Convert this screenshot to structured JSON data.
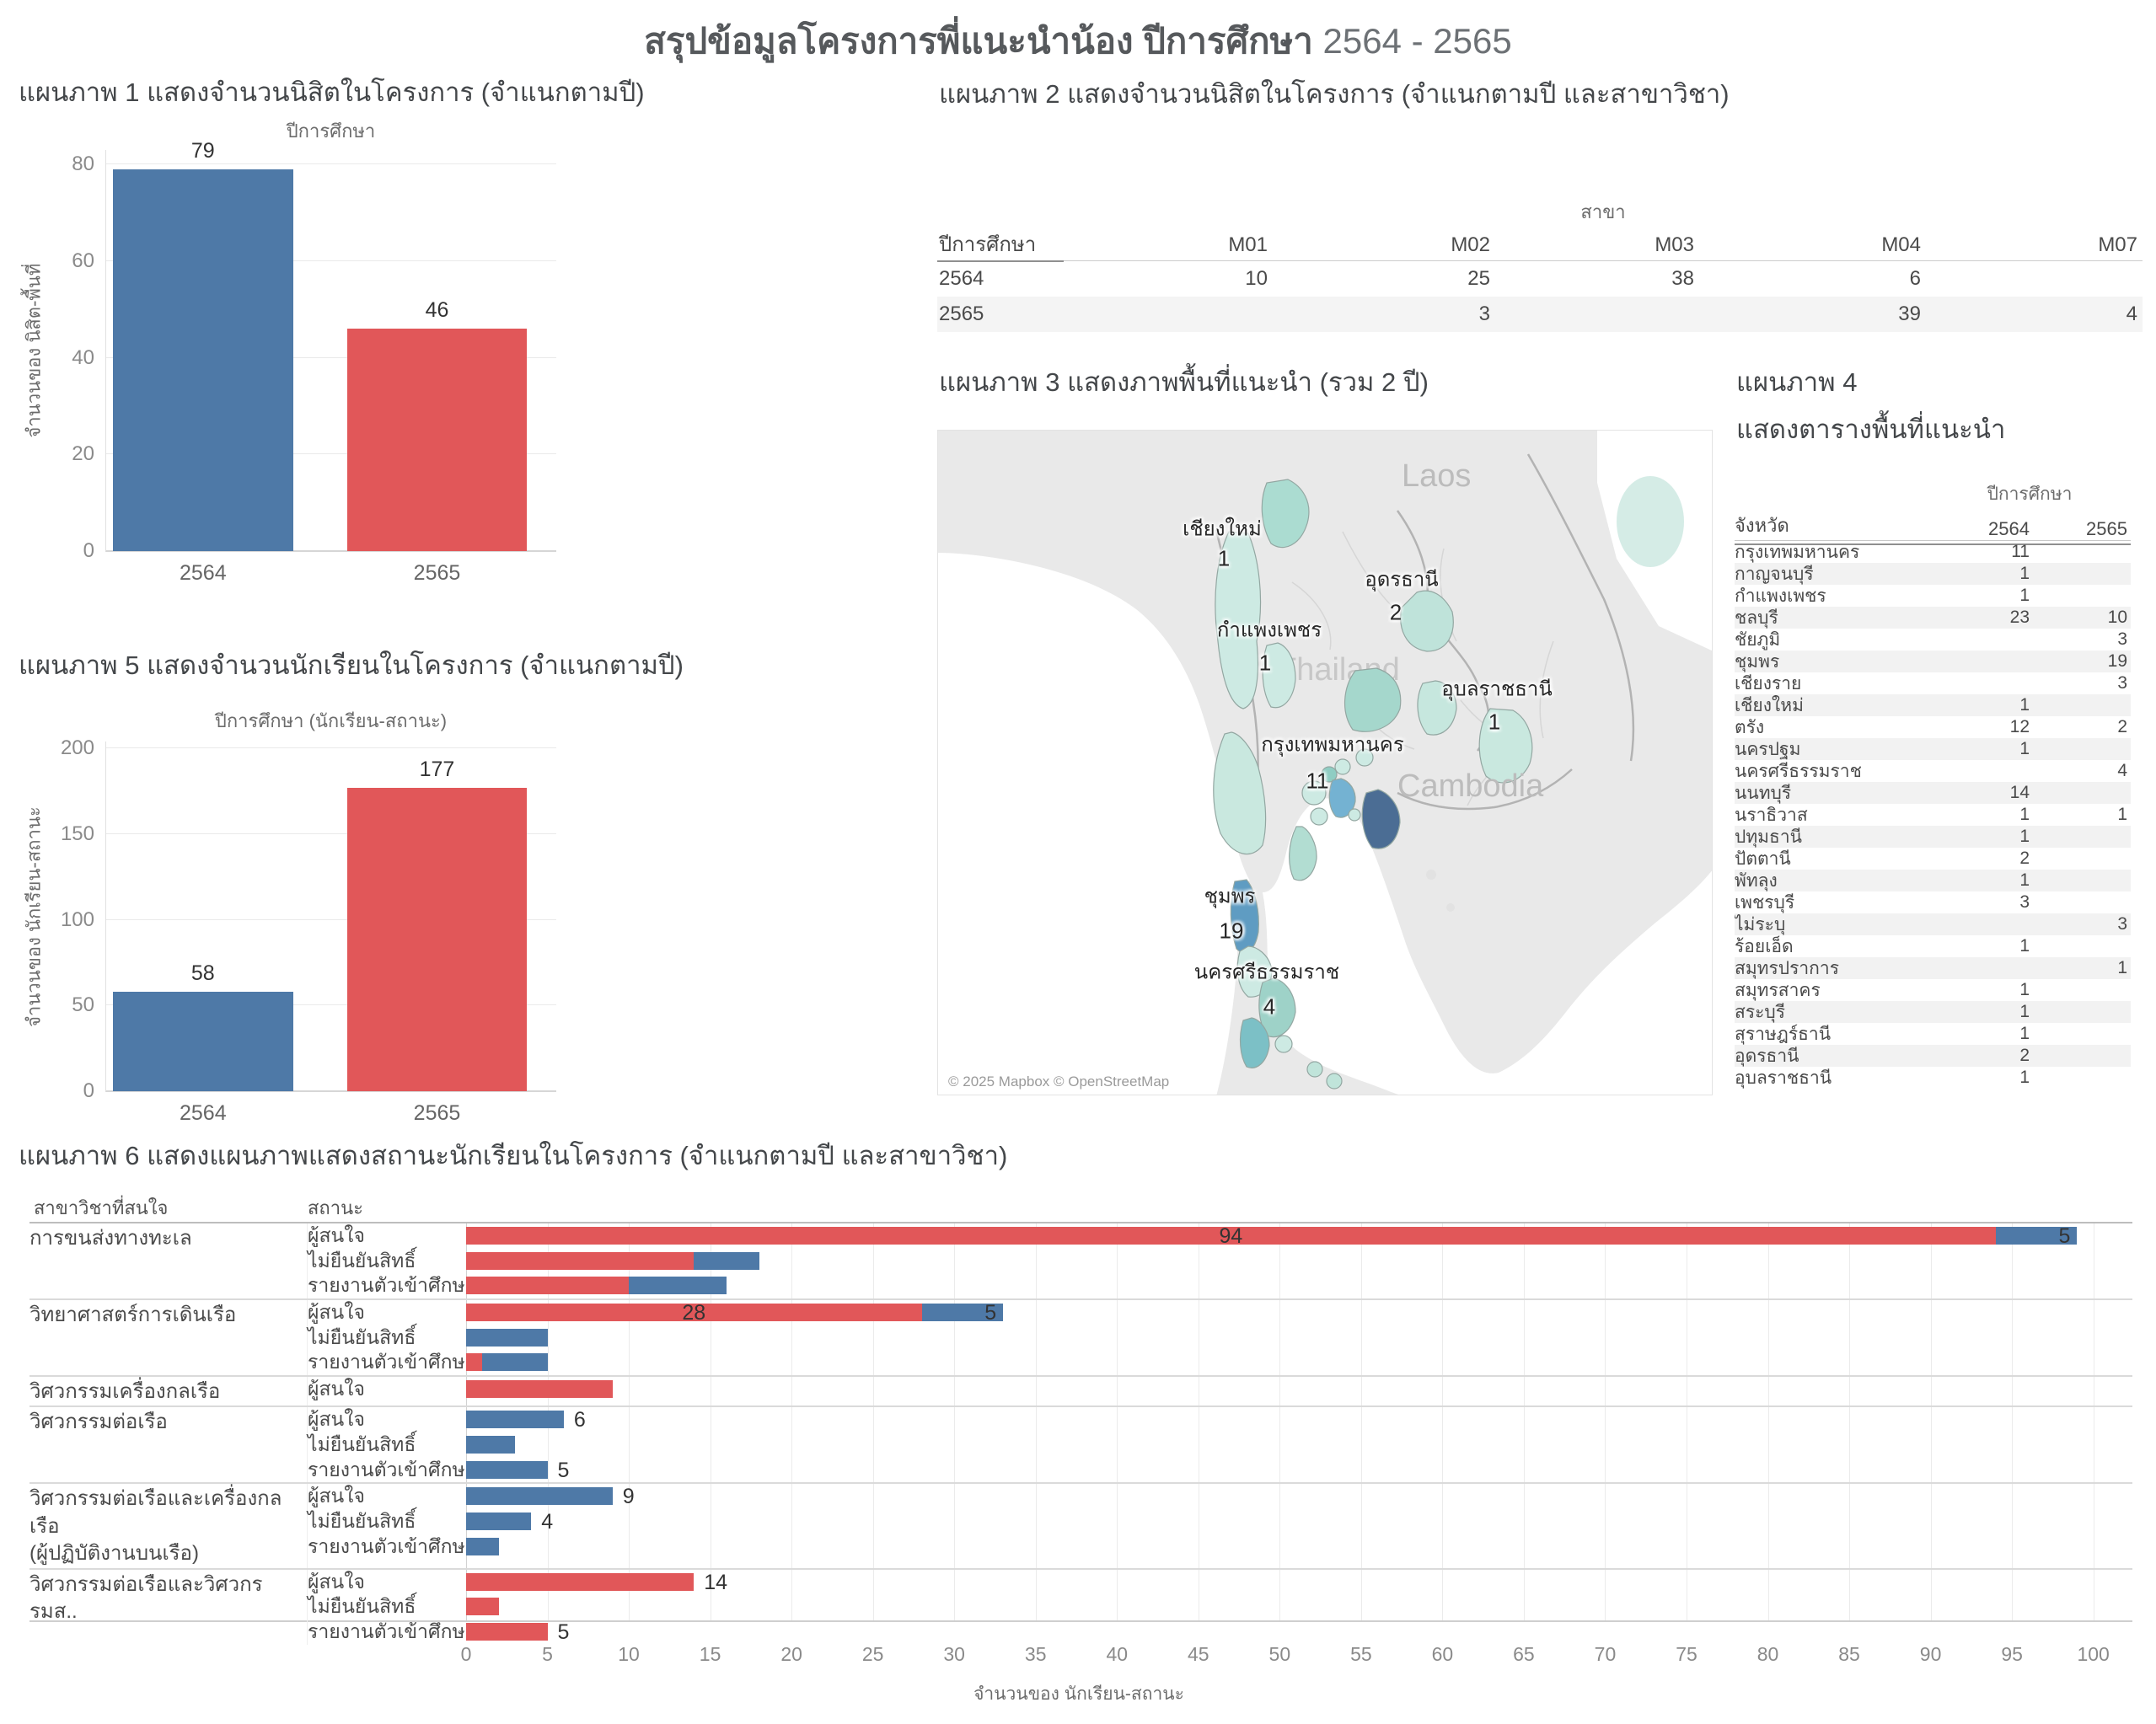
{
  "page_title": {
    "text": "สรุปข้อมูลโครงการพี่แนะนำน้อง ปีการศึกษา",
    "years": "2564 - 2565"
  },
  "colors": {
    "year_2564": "#4e79a7",
    "year_2565": "#e15759",
    "grid": "#eaeaea",
    "stripe": "#f4f4f4",
    "map_dark": "#4b6d94",
    "map_teal_high": "#5f9cc2",
    "map_teal_mid": "#8fcdc3",
    "map_teal_low": "#cdeae3"
  },
  "chart_data": [
    {
      "id": "chart1",
      "type": "bar",
      "title": "แผนภาพ 1 แสดงจำนวนนิสิตในโครงการ (จำแนกตามปี)",
      "axis_top_label": "ปีการศึกษา",
      "y_axis_title": "จำนวนของ นิสิต-พื้นที่",
      "y_ticks": [
        0,
        20,
        40,
        60,
        80
      ],
      "y_scale_max": 83,
      "bars": [
        {
          "category": "2564",
          "value": 79,
          "color": "#4e79a7"
        },
        {
          "category": "2565",
          "value": 46,
          "color": "#e15759"
        }
      ]
    },
    {
      "id": "chart2",
      "type": "table",
      "title": "แผนภาพ 2 แสดงจำนวนนิสิตในโครงการ (จำแนกตามปี และสาขาวิชา)",
      "col_group_label": "สาขา",
      "row_header": "ปีการศึกษา",
      "columns": [
        "M01",
        "M02",
        "M03",
        "M04",
        "M07"
      ],
      "rows": [
        {
          "year": "2564",
          "values": [
            "10",
            "25",
            "38",
            "6",
            ""
          ]
        },
        {
          "year": "2565",
          "values": [
            "",
            "3",
            "",
            "39",
            "4"
          ]
        }
      ]
    },
    {
      "id": "chart3",
      "type": "map",
      "title": "แผนภาพ 3 แสดงภาพพื้นที่แนะนำ (รวม 2 ปี)",
      "attribution": "© 2025 Mapbox © OpenStreetMap",
      "country_labels": [
        "Laos",
        "Thailand",
        "Cambodia"
      ],
      "province_labels": [
        {
          "name": "เชียงใหม่",
          "value": "1",
          "x": 337,
          "y": 116,
          "vx": 339,
          "vy": 152
        },
        {
          "name": "อุดรธานี",
          "value": "2",
          "x": 550,
          "y": 176,
          "vx": 543,
          "vy": 216
        },
        {
          "name": "กำแพงเพชร",
          "value": "1",
          "x": 393,
          "y": 236,
          "vx": 388,
          "vy": 276
        },
        {
          "name": "อุบลราชธานี",
          "value": "1",
          "x": 663,
          "y": 306,
          "vx": 660,
          "vy": 346
        },
        {
          "name": "กรุงเทพมหานคร",
          "value": "11",
          "x": 468,
          "y": 372,
          "vx": 450,
          "vy": 416
        },
        {
          "name": "ชุมพร",
          "value": "19",
          "x": 346,
          "y": 552,
          "vx": 348,
          "vy": 594
        },
        {
          "name": "นครศรีธรรมราช",
          "value": "4",
          "x": 390,
          "y": 642,
          "vx": 393,
          "vy": 684
        }
      ]
    },
    {
      "id": "chart4",
      "type": "table",
      "title_line1": "แผนภาพ 4",
      "title_line2": "แสดงตารางพื้นที่แนะนำ",
      "col_group_label": "ปีการศึกษา",
      "row_header": "จังหวัด",
      "columns": [
        "2564",
        "2565"
      ],
      "rows": [
        [
          "กรุงเทพมหานคร",
          "11",
          ""
        ],
        [
          "กาญจนบุรี",
          "1",
          ""
        ],
        [
          "กำแพงเพชร",
          "1",
          ""
        ],
        [
          "ชลบุรี",
          "23",
          "10"
        ],
        [
          "ชัยภูมิ",
          "",
          "3"
        ],
        [
          "ชุมพร",
          "",
          "19"
        ],
        [
          "เชียงราย",
          "",
          "3"
        ],
        [
          "เชียงใหม่",
          "1",
          ""
        ],
        [
          "ตรัง",
          "12",
          "2"
        ],
        [
          "นครปฐม",
          "1",
          ""
        ],
        [
          "นครศรีธรรมราช",
          "",
          "4"
        ],
        [
          "นนทบุรี",
          "14",
          ""
        ],
        [
          "นราธิวาส",
          "1",
          "1"
        ],
        [
          "ปทุมธานี",
          "1",
          ""
        ],
        [
          "ปัตตานี",
          "2",
          ""
        ],
        [
          "พัทลุง",
          "1",
          ""
        ],
        [
          "เพชรบุรี",
          "3",
          ""
        ],
        [
          "ไม่ระบุ",
          "",
          "3"
        ],
        [
          "ร้อยเอ็ด",
          "1",
          ""
        ],
        [
          "สมุทรปราการ",
          "",
          "1"
        ],
        [
          "สมุทรสาคร",
          "1",
          ""
        ],
        [
          "สระบุรี",
          "1",
          ""
        ],
        [
          "สุราษฎร์ธานี",
          "1",
          ""
        ],
        [
          "อุดรธานี",
          "2",
          ""
        ],
        [
          "อุบลราชธานี",
          "1",
          ""
        ]
      ]
    },
    {
      "id": "chart5",
      "type": "bar",
      "title": "แผนภาพ 5 แสดงจำนวนนักเรียนในโครงการ (จำแนกตามปี)",
      "axis_top_label": "ปีการศึกษา (นักเรียน-สถานะ)",
      "y_axis_title": "จำนวนของ นักเรียน-สถานะ",
      "y_ticks": [
        0,
        50,
        100,
        150,
        200
      ],
      "y_scale_max": 204,
      "bars": [
        {
          "category": "2564",
          "value": 58,
          "color": "#4e79a7"
        },
        {
          "category": "2565",
          "value": 177,
          "color": "#e15759"
        }
      ]
    },
    {
      "id": "chart6",
      "type": "bar",
      "title": "แผนภาพ 6 แสดงแผนภาพแสดงสถานะนักเรียนในโครงการ (จำแนกตามปี และสาขาวิชา)",
      "col1_header": "สาขาวิชาที่สนใจ",
      "col2_header": "สถานะ",
      "x_axis_title": "จำนวนของ นักเรียน-สถานะ",
      "x_ticks": [
        0,
        5,
        10,
        15,
        20,
        25,
        30,
        35,
        40,
        45,
        50,
        55,
        60,
        65,
        70,
        75,
        80,
        85,
        90,
        95,
        100
      ],
      "x_scale_max": 102.4,
      "groups": [
        {
          "label_lines": [
            "การขนส่งทางทะเล"
          ],
          "rows": [
            {
              "status": "ผู้สนใจ",
              "segments": [
                {
                  "year": "2565",
                  "color": "#e15759",
                  "value": 94,
                  "label": "94",
                  "label_pos": "center"
                },
                {
                  "year": "2564",
                  "color": "#4e79a7",
                  "value": 5,
                  "label": "5",
                  "label_pos": "inside-end"
                }
              ]
            },
            {
              "status": "ไม่ยืนยันสิทธิ์",
              "segments": [
                {
                  "year": "2565",
                  "color": "#e15759",
                  "value": 14
                },
                {
                  "year": "2564",
                  "color": "#4e79a7",
                  "value": 4
                }
              ]
            },
            {
              "status": "รายงานตัวเข้าศึกษา",
              "segments": [
                {
                  "year": "2565",
                  "color": "#e15759",
                  "value": 10
                },
                {
                  "year": "2564",
                  "color": "#4e79a7",
                  "value": 6
                }
              ]
            }
          ]
        },
        {
          "label_lines": [
            "วิทยาศาสตร์การเดินเรือ"
          ],
          "rows": [
            {
              "status": "ผู้สนใจ",
              "segments": [
                {
                  "year": "2565",
                  "color": "#e15759",
                  "value": 28,
                  "label": "28",
                  "label_pos": "center"
                },
                {
                  "year": "2564",
                  "color": "#4e79a7",
                  "value": 5,
                  "label": "5",
                  "label_pos": "inside-end"
                }
              ]
            },
            {
              "status": "ไม่ยืนยันสิทธิ์",
              "segments": [
                {
                  "year": "2564",
                  "color": "#4e79a7",
                  "value": 5
                }
              ]
            },
            {
              "status": "รายงานตัวเข้าศึกษา",
              "segments": [
                {
                  "year": "2565",
                  "color": "#e15759",
                  "value": 1
                },
                {
                  "year": "2564",
                  "color": "#4e79a7",
                  "value": 4
                }
              ]
            }
          ]
        },
        {
          "label_lines": [
            "วิศวกรรมเครื่องกลเรือ"
          ],
          "rows": [
            {
              "status": "ผู้สนใจ",
              "segments": [
                {
                  "year": "2565",
                  "color": "#e15759",
                  "value": 9
                }
              ]
            }
          ]
        },
        {
          "label_lines": [
            "วิศวกรรมต่อเรือ"
          ],
          "rows": [
            {
              "status": "ผู้สนใจ",
              "segments": [
                {
                  "year": "2564",
                  "color": "#4e79a7",
                  "value": 6,
                  "label": "6",
                  "label_pos": "outside"
                }
              ]
            },
            {
              "status": "ไม่ยืนยันสิทธิ์",
              "segments": [
                {
                  "year": "2564",
                  "color": "#4e79a7",
                  "value": 3
                }
              ]
            },
            {
              "status": "รายงานตัวเข้าศึกษา",
              "segments": [
                {
                  "year": "2564",
                  "color": "#4e79a7",
                  "value": 5,
                  "label": "5",
                  "label_pos": "outside"
                }
              ]
            }
          ]
        },
        {
          "label_lines": [
            "วิศวกรรมต่อเรือและเครื่องกลเรือ",
            "(ผู้ปฏิบัติงานบนเรือ)"
          ],
          "rows": [
            {
              "status": "ผู้สนใจ",
              "segments": [
                {
                  "year": "2564",
                  "color": "#4e79a7",
                  "value": 9,
                  "label": "9",
                  "label_pos": "outside"
                }
              ]
            },
            {
              "status": "ไม่ยืนยันสิทธิ์",
              "segments": [
                {
                  "year": "2564",
                  "color": "#4e79a7",
                  "value": 4,
                  "label": "4",
                  "label_pos": "outside"
                }
              ]
            },
            {
              "status": "รายงานตัวเข้าศึกษา",
              "segments": [
                {
                  "year": "2564",
                  "color": "#4e79a7",
                  "value": 2
                }
              ]
            }
          ]
        },
        {
          "label_lines": [
            "วิศวกรรมต่อเรือและวิศวกรรมส.."
          ],
          "rows": [
            {
              "status": "ผู้สนใจ",
              "segments": [
                {
                  "year": "2565",
                  "color": "#e15759",
                  "value": 14,
                  "label": "14",
                  "label_pos": "outside"
                }
              ]
            },
            {
              "status": "ไม่ยืนยันสิทธิ์",
              "segments": [
                {
                  "year": "2565",
                  "color": "#e15759",
                  "value": 2
                }
              ]
            },
            {
              "status": "รายงานตัวเข้าศึกษา",
              "segments": [
                {
                  "year": "2565",
                  "color": "#e15759",
                  "value": 5,
                  "label": "5",
                  "label_pos": "outside"
                }
              ]
            }
          ]
        }
      ]
    }
  ]
}
